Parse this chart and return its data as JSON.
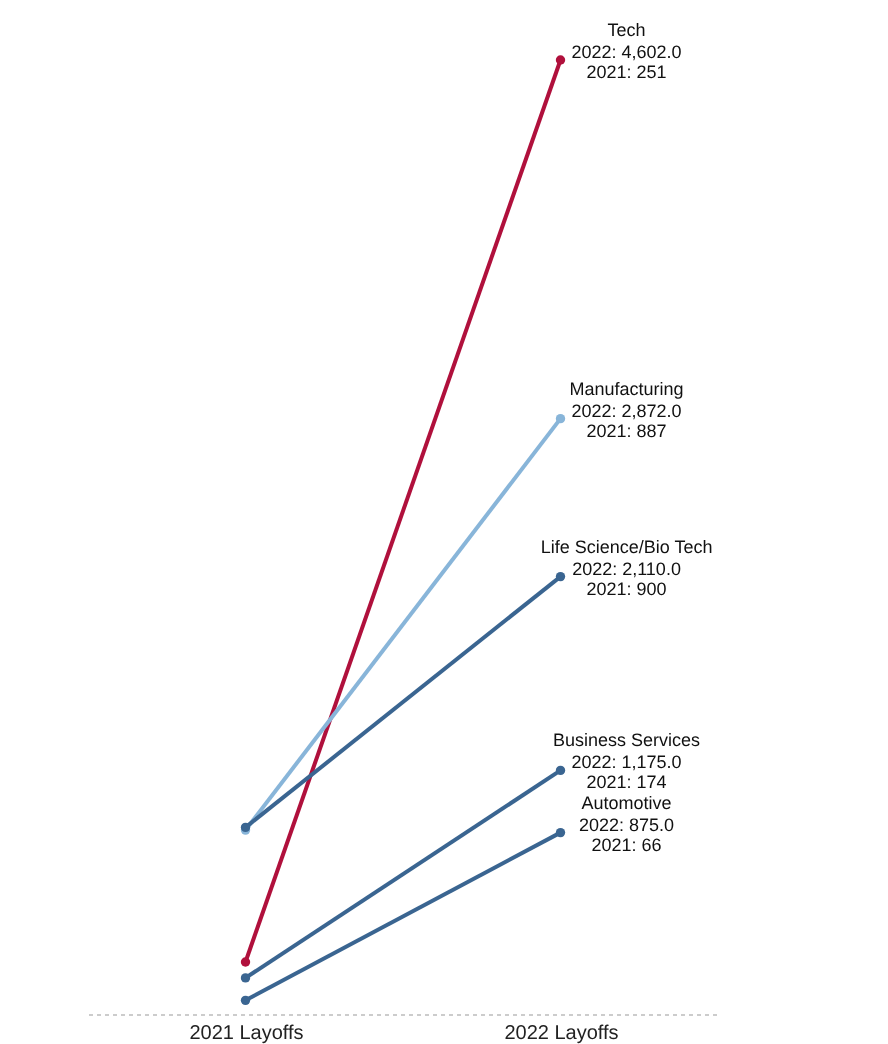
{
  "chart_data": {
    "type": "line",
    "categories": [
      "2021 Layoffs",
      "2022 Layoffs"
    ],
    "grid": false,
    "marker": "circle",
    "line_style": "solid",
    "series": [
      {
        "name": "Tech",
        "color": "#b0103c",
        "values": [
          251,
          4602
        ],
        "value_labels": [
          null,
          "2022: 4,602.0"
        ]
      },
      {
        "name": "Manufacturing",
        "color": "#88b5d9",
        "values": [
          887,
          2872
        ],
        "value_labels": [
          null,
          "2022: 2,872.0"
        ]
      },
      {
        "name": "Life Science/Bio Tech",
        "color": "#3a6591",
        "values": [
          900,
          2110
        ],
        "value_labels": [
          null,
          "2022: 2,110.0"
        ]
      },
      {
        "name": "Business Services",
        "color": "#3a6591",
        "values": [
          174,
          1175
        ],
        "value_labels": [
          null,
          "2022: 1,175.0"
        ]
      },
      {
        "name": "Automotive",
        "color": "#3a6591",
        "values": [
          66,
          875
        ],
        "value_labels": [
          null,
          "2022: 875.0"
        ]
      }
    ],
    "annotations": [
      {
        "text": "2021: 251",
        "x": "2022 Layoffs",
        "y": 4602
      },
      {
        "text": "2021: 887",
        "x": "2022 Layoffs",
        "y": 2872
      },
      {
        "text": "2021: 900",
        "x": "2022 Layoffs",
        "y": 2110
      },
      {
        "text": "2021: 174",
        "x": "2022 Layoffs",
        "y": 1175
      },
      {
        "text": "2021: 66",
        "x": "2022 Layoffs",
        "y": 875
      }
    ]
  }
}
